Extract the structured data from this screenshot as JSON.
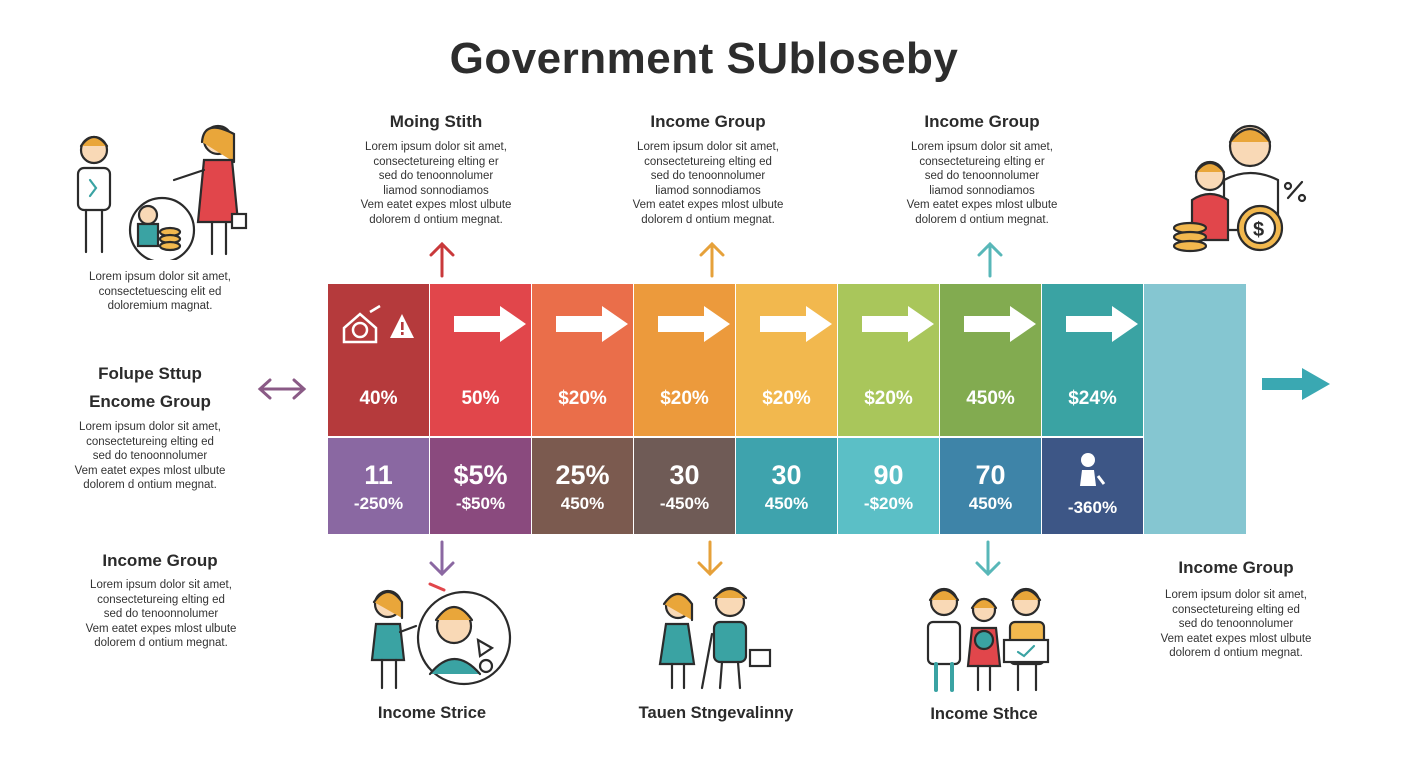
{
  "title": "Government SUbloseby",
  "lorem_short": "Lorem ipsum dolor sit amet,\nconsectetuescing elit ed\ndoloremium magnat.",
  "top_columns": [
    {
      "heading": "Moing Stith",
      "text": "Lorem ipsum dolor sit amet,\nconsectetureing elting er\nsed do tenoonnolumer\nliamod sonnodiamos\nVem eatet expes mlost ulbute\ndolorem d ontium megnat."
    },
    {
      "heading": "Income Group",
      "text": "Lorem ipsum dolor sit amet,\nconsectetureing elting ed\nsed do tenoonnolumer\nliamod sonnodiamos\nVem eatet expes mlost ulbute\ndolorem d ontium megnat."
    },
    {
      "heading": "Income Group",
      "text": "Lorem ipsum dolor sit amet,\nconsectetureing elting er\nsed do tenoonnolumer\nliamod sonnodiamos\nVem eatet expes mlost ulbute\ndolorem d ontium megnat."
    }
  ],
  "left_block": {
    "heading1": "Folupe Sttup",
    "heading2": "Encome Group",
    "text": "Lorem ipsum dolor sit amet,\nconsectetureing elting ed\nsed do tenoonnolumer\nVem eatet expes mlost ulbute\ndolorem d ontium megnat."
  },
  "bottom_left": {
    "heading": "Income Group",
    "text": "Lorem ipsum dolor sit amet,\nconsectetureing elting ed\nsed do tenoonnolumer\nVem eatet expes mlost ulbute\ndolorem d ontium megnat."
  },
  "bottom_right": {
    "heading": "Income Group",
    "text": "Lorem ipsum dolor sit amet,\nconsectetureing elting ed\nsed do tenoonnolumer\nVem eatet expes mlost ulbute\ndolorem d ontium megnat."
  },
  "captions": [
    "Income Strice",
    "Tauen Stngevalinny",
    "Income Sthce"
  ],
  "top_row": [
    {
      "value": "40%",
      "color": "#b53a3c"
    },
    {
      "value": "50%",
      "color": "#e1464b"
    },
    {
      "value": "$20%",
      "color": "#ea6e4a"
    },
    {
      "value": "$20%",
      "color": "#ec9a3c"
    },
    {
      "value": "$20%",
      "color": "#f2b84e"
    },
    {
      "value": "$20%",
      "color": "#a9c65b"
    },
    {
      "value": "450%",
      "color": "#82ab50"
    },
    {
      "value": "$24%",
      "color": "#3aa3a3"
    }
  ],
  "bottom_row": [
    {
      "num": "11",
      "pct": "-250%",
      "color": "#8a68a2"
    },
    {
      "num": "$5%",
      "pct": "-$50%",
      "color": "#8a4a7e"
    },
    {
      "num": "25%",
      "pct": "450%",
      "color": "#7b5a4f"
    },
    {
      "num": "30",
      "pct": "-450%",
      "color": "#6f5b56"
    },
    {
      "num": "30",
      "pct": "450%",
      "color": "#3ea3ad"
    },
    {
      "num": "90",
      "pct": "-$20%",
      "color": "#5bbfc6"
    },
    {
      "num": "70",
      "pct": "450%",
      "color": "#3e84a8"
    },
    {
      "num": "",
      "pct": "-360%",
      "color": "#3d5686"
    }
  ],
  "tail_color": "#85c6d1",
  "arrow_colors": {
    "up1": "#c9393b",
    "up2": "#e6a13a",
    "up3": "#58b7b8",
    "down1": "#8b68a2",
    "down2": "#e6a13a",
    "down3": "#58b7b8",
    "left": "#8a5a86",
    "right": "#3aa8b2"
  },
  "icons": [
    "family-icon",
    "house-icon",
    "warning-icon",
    "person-icon",
    "coins-icon",
    "dollar-icon"
  ]
}
